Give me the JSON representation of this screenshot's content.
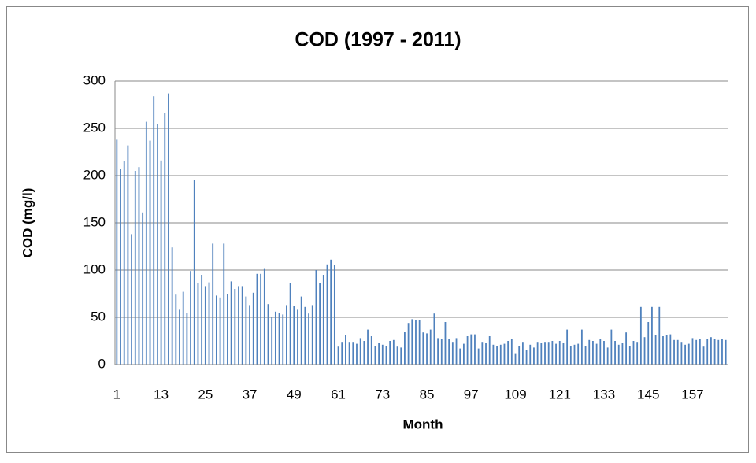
{
  "chart_data": {
    "type": "bar",
    "title": "COD (1997 - 2011)",
    "x_label": "Month",
    "y_label": "COD (mg/l)",
    "categories": [
      "1",
      null,
      null,
      null,
      null,
      null,
      null,
      null,
      null,
      null,
      null,
      null,
      "13",
      null,
      null,
      null,
      null,
      null,
      null,
      null,
      null,
      null,
      null,
      null,
      "25",
      null,
      null,
      null,
      null,
      null,
      null,
      null,
      null,
      null,
      null,
      null,
      "37",
      null,
      null,
      null,
      null,
      null,
      null,
      null,
      null,
      null,
      null,
      null,
      "49",
      null,
      null,
      null,
      null,
      null,
      null,
      null,
      null,
      null,
      null,
      null,
      "61",
      null,
      null,
      null,
      null,
      null,
      null,
      null,
      null,
      null,
      null,
      null,
      "73",
      null,
      null,
      null,
      null,
      null,
      null,
      null,
      null,
      null,
      null,
      null,
      "85",
      null,
      null,
      null,
      null,
      null,
      null,
      null,
      null,
      null,
      null,
      null,
      "97",
      null,
      null,
      null,
      null,
      null,
      null,
      null,
      null,
      null,
      null,
      null,
      "109",
      null,
      null,
      null,
      null,
      null,
      null,
      null,
      null,
      null,
      null,
      null,
      "121",
      null,
      null,
      null,
      null,
      null,
      null,
      null,
      null,
      null,
      null,
      null,
      "133",
      null,
      null,
      null,
      null,
      null,
      null,
      null,
      null,
      null,
      null,
      null,
      "145",
      null,
      null,
      null,
      null,
      null,
      null,
      null,
      null,
      null,
      null,
      null,
      "157",
      null,
      null,
      null,
      null,
      null,
      null,
      null,
      null,
      null
    ],
    "values": [
      238,
      207,
      215,
      232,
      138,
      205,
      209,
      161,
      257,
      237,
      284,
      255,
      216,
      266,
      287,
      124,
      74,
      58,
      77,
      55,
      99,
      195,
      86,
      95,
      83,
      87,
      128,
      73,
      71,
      128,
      75,
      88,
      80,
      83,
      83,
      72,
      63,
      76,
      96,
      96,
      102,
      64,
      50,
      56,
      55,
      53,
      63,
      86,
      62,
      58,
      72,
      61,
      54,
      63,
      100,
      86,
      95,
      106,
      111,
      105,
      19,
      24,
      31,
      24,
      24,
      22,
      28,
      25,
      37,
      30,
      20,
      23,
      21,
      20,
      25,
      26,
      19,
      18,
      35,
      44,
      48,
      47,
      47,
      34,
      33,
      37,
      54,
      28,
      27,
      45,
      27,
      24,
      28,
      17,
      22,
      30,
      32,
      32,
      17,
      24,
      23,
      30,
      21,
      20,
      21,
      22,
      25,
      27,
      12,
      20,
      24,
      15,
      21,
      18,
      24,
      23,
      24,
      24,
      25,
      22,
      25,
      23,
      37,
      20,
      21,
      22,
      37,
      20,
      26,
      25,
      22,
      27,
      25,
      18,
      37,
      25,
      21,
      23,
      34,
      20,
      25,
      24,
      61,
      29,
      45,
      61,
      31,
      61,
      30,
      31,
      32,
      26,
      26,
      24,
      21,
      22,
      28,
      26,
      27,
      19,
      27,
      29,
      27,
      26,
      27,
      26
    ],
    "color": "#4f81bd",
    "ylim": [
      0,
      300
    ],
    "yticks": [
      0,
      50,
      100,
      150,
      200,
      250,
      300
    ],
    "grid": true
  }
}
